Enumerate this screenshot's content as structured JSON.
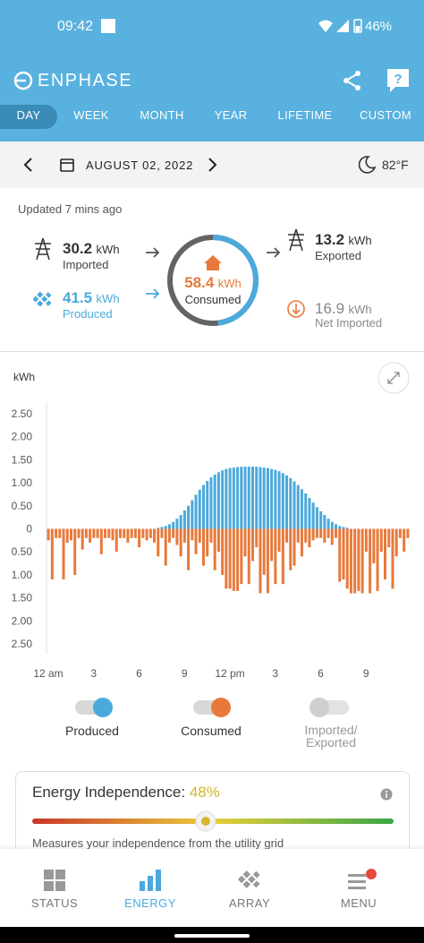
{
  "status_bar": {
    "time": "09:42",
    "battery": "46%"
  },
  "header": {
    "brand": "ENPHASE"
  },
  "tabs": [
    "DAY",
    "WEEK",
    "MONTH",
    "YEAR",
    "LIFETIME",
    "CUSTOM"
  ],
  "date_bar": {
    "date": "AUGUST 02, 2022",
    "temperature": "82°F"
  },
  "summary": {
    "updated": "Updated 7 mins ago",
    "imported": {
      "value": 30.2,
      "unit": "kWh",
      "label": "Imported"
    },
    "produced": {
      "value": 41.5,
      "unit": "kWh",
      "label": "Produced"
    },
    "consumed": {
      "value": 58.4,
      "unit": "kWh",
      "label": "Consumed"
    },
    "exported": {
      "value": 13.2,
      "unit": "kWh",
      "label": "Exported"
    },
    "net_imported": {
      "value": 16.9,
      "unit": "kWh",
      "label": "Net Imported"
    }
  },
  "chart_data": {
    "type": "bar",
    "y_label": "kWh",
    "categories": [
      "12 am",
      null,
      null,
      null,
      null,
      null,
      null,
      null,
      null,
      null,
      null,
      null,
      "3",
      null,
      null,
      null,
      null,
      null,
      null,
      null,
      null,
      null,
      null,
      null,
      "6",
      null,
      null,
      null,
      null,
      null,
      null,
      null,
      null,
      null,
      null,
      null,
      "9",
      null,
      null,
      null,
      null,
      null,
      null,
      null,
      null,
      null,
      null,
      null,
      "12 pm",
      null,
      null,
      null,
      null,
      null,
      null,
      null,
      null,
      null,
      null,
      null,
      "3",
      null,
      null,
      null,
      null,
      null,
      null,
      null,
      null,
      null,
      null,
      null,
      "6",
      null,
      null,
      null,
      null,
      null,
      null,
      null,
      null,
      null,
      null,
      null,
      "9",
      null,
      null,
      null,
      null,
      null,
      null,
      null,
      null,
      null,
      null,
      null
    ],
    "series": [
      {
        "name": "Produced",
        "color": "#4ba9db",
        "values": [
          0,
          0,
          0,
          0,
          0,
          0,
          0,
          0,
          0,
          0,
          0,
          0,
          0,
          0,
          0,
          0,
          0,
          0,
          0,
          0,
          0,
          0,
          0,
          0,
          0,
          0,
          0,
          0,
          0,
          0.02,
          0.04,
          0.06,
          0.1,
          0.15,
          0.22,
          0.3,
          0.4,
          0.5,
          0.62,
          0.74,
          0.85,
          0.95,
          1.04,
          1.12,
          1.18,
          1.23,
          1.27,
          1.3,
          1.32,
          1.33,
          1.34,
          1.35,
          1.35,
          1.35,
          1.35,
          1.35,
          1.34,
          1.33,
          1.32,
          1.3,
          1.28,
          1.25,
          1.21,
          1.16,
          1.1,
          1.03,
          0.95,
          0.86,
          0.77,
          0.67,
          0.57,
          0.47,
          0.38,
          0.3,
          0.22,
          0.15,
          0.1,
          0.06,
          0.04,
          0.02,
          0,
          0,
          0,
          0,
          0,
          0,
          0,
          0,
          0,
          0,
          0,
          0,
          0,
          0,
          0,
          0
        ]
      },
      {
        "name": "Consumed",
        "color": "#e8793a",
        "values": [
          -0.25,
          -1.1,
          -0.2,
          -0.2,
          -1.1,
          -0.3,
          -0.25,
          -1.0,
          -0.2,
          -0.45,
          -0.2,
          -0.3,
          -0.2,
          -0.2,
          -0.55,
          -0.2,
          -0.2,
          -0.25,
          -0.5,
          -0.2,
          -0.2,
          -0.3,
          -0.2,
          -0.2,
          -0.4,
          -0.2,
          -0.25,
          -0.2,
          -0.3,
          -0.6,
          -0.2,
          -0.8,
          -0.3,
          -0.2,
          -0.35,
          -0.6,
          -0.3,
          -0.9,
          -0.25,
          -0.55,
          -0.3,
          -0.8,
          -0.6,
          -0.3,
          -0.9,
          -0.5,
          -1.0,
          -1.3,
          -1.3,
          -1.35,
          -1.35,
          -1.2,
          -0.6,
          -1.2,
          -0.7,
          -0.4,
          -1.4,
          -1.0,
          -1.4,
          -0.7,
          -1.2,
          -0.5,
          -1.2,
          -0.3,
          -0.9,
          -0.8,
          -0.3,
          -0.6,
          -0.3,
          -0.4,
          -0.25,
          -0.2,
          -0.2,
          -0.3,
          -0.2,
          -0.35,
          -0.2,
          -1.15,
          -1.1,
          -1.3,
          -1.4,
          -1.4,
          -1.35,
          -1.4,
          -0.5,
          -1.4,
          -0.75,
          -1.35,
          -0.5,
          -1.1,
          -0.4,
          -1.3,
          -0.6,
          -0.2,
          -0.5,
          -0.2
        ]
      }
    ],
    "inactive_legend": "Imported/ Exported",
    "ylim": [
      -2.5,
      2.5
    ],
    "yticks": [
      {
        "value": 2.5,
        "label": "2.50"
      },
      {
        "value": 2,
        "label": "2.00"
      },
      {
        "value": 1.5,
        "label": "1.50"
      },
      {
        "value": 1,
        "label": "1.00"
      },
      {
        "value": 0.5,
        "label": "0.50"
      },
      0,
      {
        "value": -0.5,
        "label": "0.50"
      },
      {
        "value": -1,
        "label": "1.00"
      },
      {
        "value": -1.5,
        "label": "1.50"
      },
      {
        "value": -2,
        "label": "2.00"
      },
      {
        "value": -2.5,
        "label": "2.50"
      }
    ],
    "grid": false
  },
  "energy_independence": {
    "title": "Energy Independence:",
    "independence": {
      "value": 48,
      "label": "48%"
    },
    "description": "Measures your independence from the utility grid"
  },
  "nav": [
    "STATUS",
    "ENERGY",
    "ARRAY",
    "MENU"
  ]
}
